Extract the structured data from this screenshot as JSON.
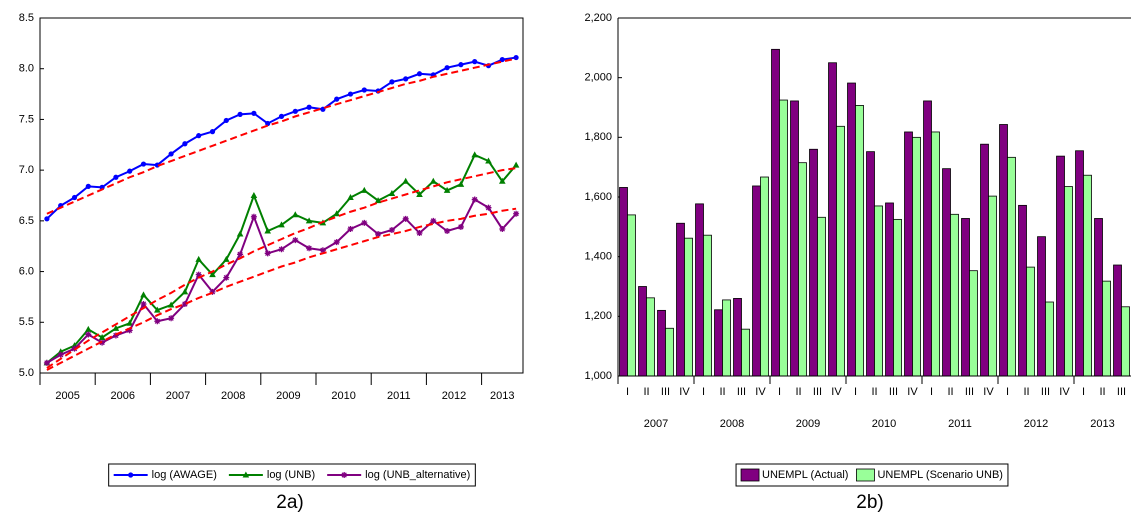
{
  "chart_data": [
    {
      "type": "line",
      "caption": "2a)",
      "categories": [
        "2005",
        null,
        null,
        null,
        "2006",
        null,
        null,
        null,
        "2007",
        null,
        null,
        null,
        "2008",
        null,
        null,
        null,
        "2009",
        null,
        null,
        null,
        "2010",
        null,
        null,
        null,
        "2011",
        null,
        null,
        null,
        "2012",
        null,
        null,
        null,
        "2013",
        null,
        null
      ],
      "ylim": [
        5.0,
        8.5
      ],
      "yticks": [
        {
          "value": 5.0,
          "label": "5.0"
        },
        5.5,
        {
          "value": 6.0,
          "label": "6.0"
        },
        6.5,
        {
          "value": 7.0,
          "label": "7.0"
        },
        7.5,
        {
          "value": 8.0,
          "label": "8.0"
        },
        8.5
      ],
      "series": [
        {
          "name": "log (AWAGE)",
          "color": "#0000ff",
          "marker": "circle",
          "values": [
            6.52,
            6.65,
            6.73,
            6.84,
            6.83,
            6.93,
            6.99,
            7.06,
            7.05,
            7.16,
            7.26,
            7.34,
            7.38,
            7.49,
            7.55,
            7.56,
            7.46,
            7.53,
            7.58,
            7.62,
            7.6,
            7.7,
            7.75,
            7.79,
            7.78,
            7.87,
            7.9,
            7.95,
            7.94,
            8.01,
            8.04,
            8.07,
            8.03,
            8.09,
            8.11
          ]
        },
        {
          "name": "log (UNB)",
          "color": "#008000",
          "marker": "triangle",
          "values": [
            5.1,
            5.21,
            5.27,
            5.43,
            5.35,
            5.44,
            5.49,
            5.77,
            5.62,
            5.67,
            5.8,
            6.12,
            5.97,
            6.12,
            6.37,
            6.75,
            6.4,
            6.46,
            6.56,
            6.5,
            6.48,
            6.57,
            6.73,
            6.8,
            6.7,
            6.77,
            6.89,
            6.76,
            6.89,
            6.8,
            6.86,
            7.15,
            7.09,
            6.89,
            7.05
          ]
        },
        {
          "name": "log (UNB_alternative)",
          "color": "#800080",
          "marker": "star",
          "values": [
            5.1,
            5.18,
            5.24,
            5.38,
            5.3,
            5.37,
            5.42,
            5.68,
            5.51,
            5.54,
            5.68,
            5.97,
            5.8,
            5.94,
            6.17,
            6.54,
            6.18,
            6.22,
            6.31,
            6.23,
            6.21,
            6.29,
            6.42,
            6.48,
            6.37,
            6.41,
            6.52,
            6.38,
            6.5,
            6.4,
            6.44,
            6.71,
            6.63,
            6.42,
            6.57
          ]
        },
        {
          "color": "#ff0000",
          "dash": true,
          "values": [
            6.57,
            6.63,
            6.69,
            6.75,
            6.81,
            6.87,
            6.93,
            6.98,
            7.04,
            7.09,
            7.14,
            7.19,
            7.24,
            7.29,
            7.34,
            7.39,
            7.44,
            7.48,
            7.53,
            7.57,
            7.61,
            7.65,
            7.69,
            7.73,
            7.77,
            7.81,
            7.85,
            7.88,
            7.92,
            7.95,
            7.98,
            8.01,
            8.04,
            8.07,
            8.1
          ]
        },
        {
          "color": "#ff0000",
          "dash": true,
          "values": [
            5.05,
            5.14,
            5.23,
            5.32,
            5.4,
            5.48,
            5.56,
            5.64,
            5.72,
            5.79,
            5.87,
            5.94,
            6.0,
            6.07,
            6.13,
            6.2,
            6.26,
            6.32,
            6.38,
            6.43,
            6.49,
            6.54,
            6.59,
            6.63,
            6.68,
            6.72,
            6.76,
            6.8,
            6.84,
            6.88,
            6.91,
            6.94,
            6.97,
            7.0,
            7.02
          ]
        },
        {
          "color": "#ff0000",
          "dash": true,
          "values": [
            5.03,
            5.1,
            5.17,
            5.24,
            5.31,
            5.38,
            5.44,
            5.5,
            5.57,
            5.63,
            5.68,
            5.74,
            5.79,
            5.85,
            5.9,
            5.95,
            6.0,
            6.05,
            6.09,
            6.14,
            6.18,
            6.22,
            6.26,
            6.3,
            6.34,
            6.37,
            6.4,
            6.44,
            6.47,
            6.5,
            6.52,
            6.55,
            6.57,
            6.6,
            6.62
          ]
        }
      ]
    },
    {
      "type": "bar",
      "caption": "2b)",
      "categories": [
        "I",
        "II",
        "III",
        "IV",
        "I",
        "II",
        "III",
        "IV",
        "I",
        "II",
        "III",
        "IV",
        "I",
        "II",
        "III",
        "IV",
        "I",
        "II",
        "III",
        "IV",
        "I",
        "II",
        "III",
        "IV",
        "I",
        "II",
        "III"
      ],
      "years": [
        "2007",
        "2008",
        "2009",
        "2010",
        "2011",
        "2012",
        "2013"
      ],
      "ylim": [
        1000,
        2200
      ],
      "yticks": [
        {
          "value": 1000,
          "label": "1,000"
        },
        {
          "value": 1200,
          "label": "1,200"
        },
        {
          "value": 1400,
          "label": "1,400"
        },
        {
          "value": 1600,
          "label": "1,600"
        },
        {
          "value": 1800,
          "label": "1,800"
        },
        {
          "value": 2000,
          "label": "2,000"
        },
        {
          "value": 2200,
          "label": "2,200"
        }
      ],
      "series": [
        {
          "name": "UNEMPL (Actual)",
          "color": "#800080",
          "values": [
            1632,
            1300,
            1220,
            1512,
            1577,
            1222,
            1260,
            1637,
            2095,
            1922,
            1760,
            2050,
            1982,
            1752,
            1580,
            1818,
            1922,
            1695,
            1528,
            1777,
            1843,
            1572,
            1467,
            1737,
            1755,
            1528,
            1372
          ]
        },
        {
          "name": "UNEMPL (Scenario UNB)",
          "color": "#99ff99",
          "values": [
            1540,
            1262,
            1160,
            1462,
            1472,
            1255,
            1157,
            1667,
            1925,
            1715,
            1532,
            1837,
            1907,
            1570,
            1525,
            1800,
            1818,
            1542,
            1353,
            1603,
            1733,
            1365,
            1248,
            1635,
            1673,
            1318,
            1232
          ]
        }
      ]
    }
  ]
}
